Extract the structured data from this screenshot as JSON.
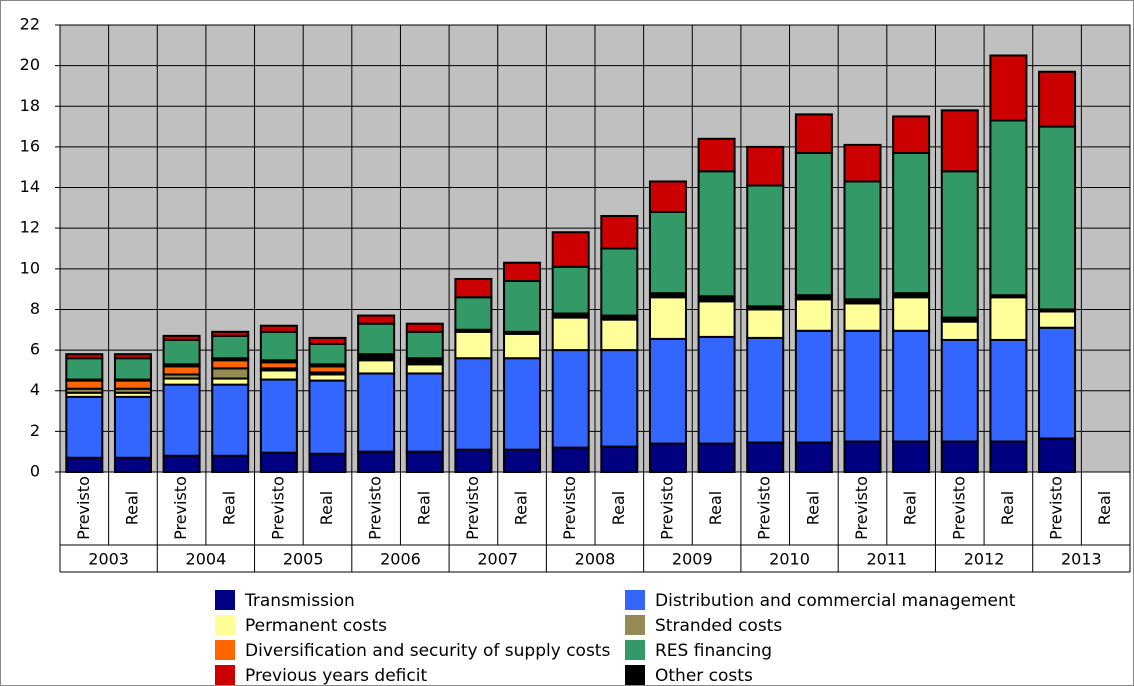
{
  "chart_data": {
    "type": "stacked-bar",
    "categories": [
      "Previsto",
      "Real",
      "Previsto",
      "Real",
      "Previsto",
      "Real",
      "Previsto",
      "Real",
      "Previsto",
      "Real",
      "Previsto",
      "Real",
      "Previsto",
      "Real",
      "Previsto",
      "Real",
      "Previsto",
      "Real",
      "Previsto",
      "Real",
      "Previsto",
      "Real"
    ],
    "groups": [
      "2003",
      "2004",
      "2005",
      "2006",
      "2007",
      "2008",
      "2009",
      "2010",
      "2011",
      "2012",
      "2013"
    ],
    "ylim": [
      0,
      22
    ],
    "yticks": [
      0,
      2,
      4,
      6,
      8,
      10,
      12,
      14,
      16,
      18,
      20,
      22
    ],
    "grid": true,
    "series": [
      {
        "name": "Transmission",
        "color": "#000080",
        "values": [
          0.7,
          0.7,
          0.8,
          0.8,
          0.95,
          0.9,
          1.0,
          1.0,
          1.1,
          1.1,
          1.2,
          1.25,
          1.4,
          1.4,
          1.45,
          1.45,
          1.5,
          1.5,
          1.5,
          1.5,
          1.65,
          null
        ]
      },
      {
        "name": "Distribution and commercial management",
        "color": "#3366FF",
        "values": [
          3.0,
          3.0,
          3.5,
          3.5,
          3.6,
          3.6,
          3.85,
          3.85,
          4.5,
          4.5,
          4.8,
          4.75,
          5.15,
          5.25,
          5.15,
          5.5,
          5.45,
          5.45,
          5.0,
          5.0,
          5.45,
          null
        ]
      },
      {
        "name": "Permanent costs",
        "color": "#FFFF99",
        "values": [
          0.2,
          0.2,
          0.3,
          0.3,
          0.45,
          0.3,
          0.65,
          0.45,
          1.3,
          1.2,
          1.6,
          1.5,
          2.05,
          1.75,
          1.4,
          1.55,
          1.35,
          1.65,
          0.9,
          2.1,
          0.8,
          null
        ]
      },
      {
        "name": "Stranded costs",
        "color": "#948A54",
        "values": [
          0.2,
          0.2,
          0.2,
          0.5,
          0.1,
          0.1,
          0,
          0,
          0,
          0,
          0,
          0,
          0,
          0,
          0,
          0,
          0,
          0,
          0,
          0,
          0,
          null
        ]
      },
      {
        "name": "Diversification and security of supply costs",
        "color": "#FF6600",
        "values": [
          0.4,
          0.4,
          0.4,
          0.4,
          0.3,
          0.3,
          0,
          0,
          0,
          0,
          0,
          0,
          0,
          0,
          0,
          0,
          0,
          0,
          0,
          0,
          0,
          null
        ]
      },
      {
        "name": "RES financing",
        "color": "#339966",
        "values": [
          1.05,
          1.05,
          1.2,
          1.1,
          1.4,
          1.0,
          1.5,
          1.3,
          1.6,
          2.5,
          2.3,
          3.3,
          4.0,
          6.15,
          5.95,
          7.0,
          5.8,
          6.9,
          7.2,
          8.6,
          9.0,
          null
        ]
      },
      {
        "name": "Previous years deficit",
        "color": "#CC0000",
        "values": [
          0.2,
          0.2,
          0.2,
          0.2,
          0.3,
          0.3,
          0.4,
          0.4,
          0.9,
          0.9,
          1.7,
          1.6,
          1.5,
          1.6,
          1.9,
          1.9,
          1.8,
          1.8,
          3.0,
          3.2,
          2.7,
          null
        ]
      },
      {
        "name": "Other costs",
        "color": "#000000",
        "values": [
          0.05,
          0.05,
          0.1,
          0.1,
          0.1,
          0.1,
          0.3,
          0.3,
          0.1,
          0.1,
          0.2,
          0.2,
          0.2,
          0.25,
          0.15,
          0.2,
          0.2,
          0.2,
          0.2,
          0.1,
          0.1,
          null
        ]
      }
    ]
  }
}
